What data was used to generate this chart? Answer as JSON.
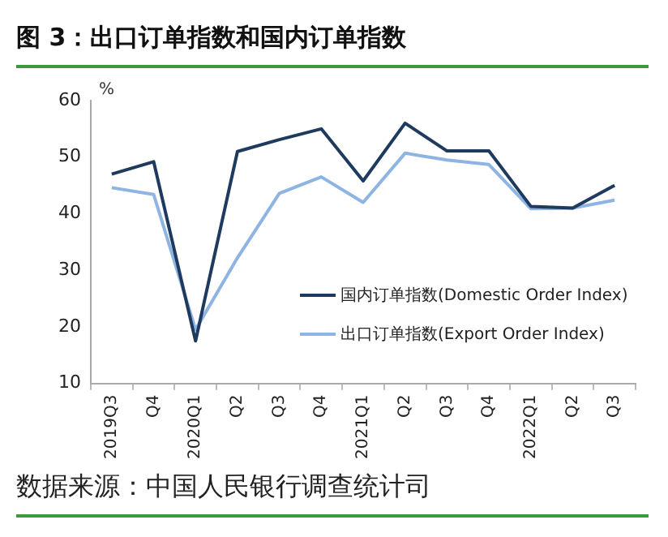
{
  "chart_data": {
    "type": "line",
    "title": "图 3：出口订单指数和国内订单指数",
    "ylabel": "%",
    "categories": [
      "2019Q3",
      "Q4",
      "2020Q1",
      "Q2",
      "Q3",
      "Q4",
      "2021Q1",
      "Q2",
      "Q3",
      "Q4",
      "2022Q1",
      "Q2",
      "Q3"
    ],
    "series": [
      {
        "name": "国内订单指数(Domestic Order Index)",
        "color": "#1f3a5f",
        "values": [
          47,
          49.2,
          17.5,
          51,
          53.1,
          55,
          45.8,
          56,
          51.1,
          51.1,
          41.3,
          41,
          45
        ]
      },
      {
        "name": "出口订单指数(Export Order Index)",
        "color": "#8db4e2",
        "values": [
          44.6,
          43.4,
          19.5,
          32.2,
          43.6,
          46.5,
          42,
          50.7,
          49.5,
          48.7,
          40.9,
          41,
          42.4
        ]
      }
    ],
    "ylim": [
      10,
      60
    ],
    "yticks": [
      10,
      20,
      30,
      40,
      50,
      60
    ],
    "grid": false,
    "legend": "bottom right",
    "marker": "none",
    "line_style": "solid",
    "annotations": [
      "数据来源：中国人民银行调查统计司"
    ]
  }
}
